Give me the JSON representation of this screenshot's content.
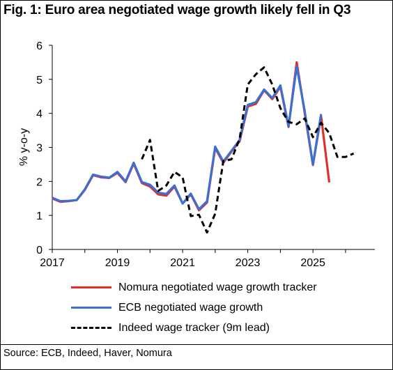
{
  "title": "Fig. 1: Euro area negotiated wage growth likely fell in Q3",
  "source": "Source: ECB, Indeed, Haver, Nomura",
  "chart_data": {
    "type": "line",
    "ylabel": "% y-o-y",
    "xlabel": "",
    "ylim": [
      0,
      6
    ],
    "xlim": [
      2017,
      2026.9
    ],
    "y_ticks": [
      "0",
      "1",
      "2",
      "3",
      "4",
      "5",
      "6"
    ],
    "x_ticks": [
      "2017",
      "2019",
      "2021",
      "2023",
      "2025"
    ],
    "grid": false,
    "legend_position": "bottom",
    "series": [
      {
        "name": "Nomura negotiated wage growth tracker",
        "color": "#e0302a",
        "style": "solid",
        "x": [
          2017.0,
          2017.25,
          2017.5,
          2017.75,
          2018.0,
          2018.25,
          2018.5,
          2018.75,
          2019.0,
          2019.25,
          2019.5,
          2019.75,
          2020.0,
          2020.25,
          2020.5,
          2020.75,
          2021.0,
          2021.25,
          2021.5,
          2021.75,
          2022.0,
          2022.25,
          2022.5,
          2022.75,
          2023.0,
          2023.25,
          2023.5,
          2023.75,
          2024.0,
          2024.25,
          2024.5,
          2024.75,
          2025.0,
          2025.25,
          2025.5
        ],
        "y": [
          1.5,
          1.4,
          1.42,
          1.45,
          1.75,
          2.18,
          2.12,
          2.1,
          2.25,
          1.98,
          2.52,
          1.95,
          1.85,
          1.62,
          1.58,
          1.85,
          1.35,
          1.62,
          1.15,
          1.38,
          2.98,
          2.55,
          2.88,
          3.18,
          4.2,
          4.28,
          4.68,
          4.42,
          4.78,
          3.6,
          5.5,
          4.0,
          2.48,
          3.92,
          1.97
        ]
      },
      {
        "name": "ECB negotiated wage growth",
        "color": "#3b6fd1",
        "style": "solid",
        "x": [
          2017.0,
          2017.25,
          2017.5,
          2017.75,
          2018.0,
          2018.25,
          2018.5,
          2018.75,
          2019.0,
          2019.25,
          2019.5,
          2019.75,
          2020.0,
          2020.25,
          2020.5,
          2020.75,
          2021.0,
          2021.25,
          2021.5,
          2021.75,
          2022.0,
          2022.25,
          2022.5,
          2022.75,
          2023.0,
          2023.25,
          2023.5,
          2023.75,
          2024.0,
          2024.25,
          2024.5,
          2024.75,
          2025.0,
          2025.25
        ],
        "y": [
          1.52,
          1.42,
          1.43,
          1.45,
          1.77,
          2.2,
          2.14,
          2.11,
          2.28,
          2.0,
          2.55,
          1.98,
          1.9,
          1.67,
          1.63,
          1.88,
          1.35,
          1.64,
          1.18,
          1.42,
          3.02,
          2.58,
          2.9,
          3.22,
          4.25,
          4.33,
          4.7,
          4.45,
          4.82,
          3.62,
          5.38,
          4.05,
          2.5,
          3.98
        ]
      },
      {
        "name": "Indeed wage tracker (9m lead)",
        "color": "#000000",
        "style": "dashed",
        "x": [
          2019.75,
          2020.0,
          2020.25,
          2020.5,
          2020.75,
          2021.0,
          2021.25,
          2021.5,
          2021.75,
          2022.0,
          2022.25,
          2022.5,
          2022.75,
          2023.0,
          2023.25,
          2023.5,
          2023.75,
          2024.0,
          2024.25,
          2024.5,
          2024.75,
          2025.0,
          2025.25,
          2025.5,
          2025.75,
          2026.0,
          2026.25
        ],
        "y": [
          2.65,
          3.22,
          1.72,
          1.88,
          2.28,
          2.12,
          0.98,
          1.02,
          0.5,
          1.05,
          2.6,
          2.65,
          3.25,
          4.85,
          5.15,
          5.35,
          4.85,
          4.15,
          3.75,
          3.68,
          3.85,
          3.3,
          3.72,
          3.42,
          2.72,
          2.72,
          2.82
        ]
      }
    ]
  }
}
